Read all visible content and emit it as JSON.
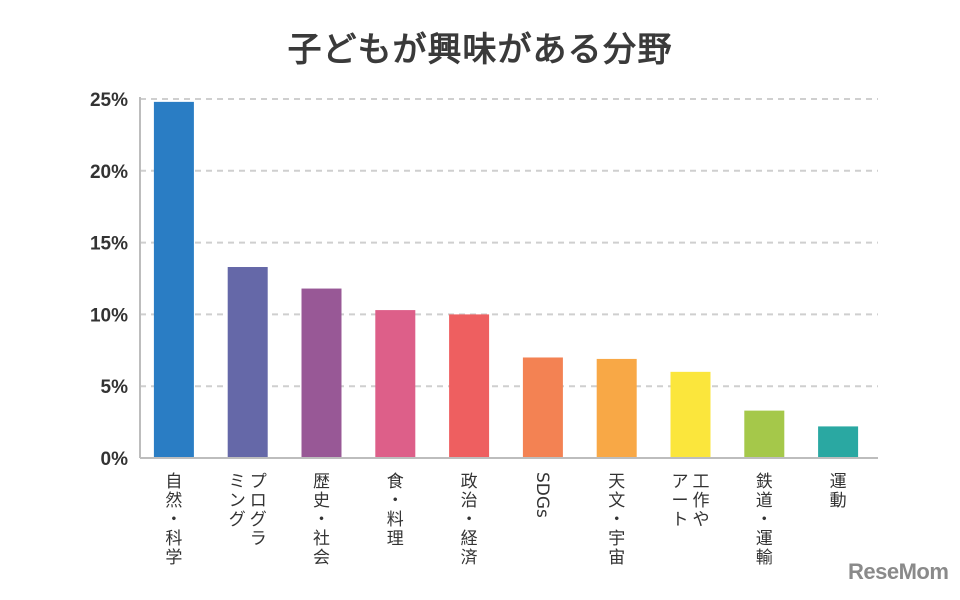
{
  "chart_data": {
    "type": "bar",
    "title": "子どもが興味がある分野",
    "categories": [
      "自然・科学",
      "プログラミング",
      "歴史・社会",
      "食・料理",
      "政治・経済",
      "SDGs",
      "天文・宇宙",
      "工作やアート",
      "鉄道・運輸",
      "運動"
    ],
    "category_lines": [
      [
        "自然・科学"
      ],
      [
        "プログラ",
        "ミング"
      ],
      [
        "歴史・社会"
      ],
      [
        "食・料理"
      ],
      [
        "政治・経済"
      ],
      [
        "SDGs"
      ],
      [
        "天文・宇宙"
      ],
      [
        "工作や",
        "アート"
      ],
      [
        "鉄道・運輸"
      ],
      [
        "運動"
      ]
    ],
    "values": [
      24.8,
      13.3,
      11.8,
      10.3,
      10.0,
      7.0,
      6.9,
      6.0,
      3.3,
      2.2
    ],
    "colors": [
      "#2a7dc4",
      "#6568a8",
      "#985896",
      "#dd5f89",
      "#ee5f60",
      "#f38253",
      "#f8a846",
      "#fbe63c",
      "#a5c84a",
      "#2aa8a2"
    ],
    "ylim": [
      0,
      25
    ],
    "yticks": [
      "0%",
      "5%",
      "10%",
      "15%",
      "20%",
      "25%"
    ],
    "grid": true,
    "xlabel": "",
    "ylabel": ""
  },
  "logo": "ReseMom"
}
